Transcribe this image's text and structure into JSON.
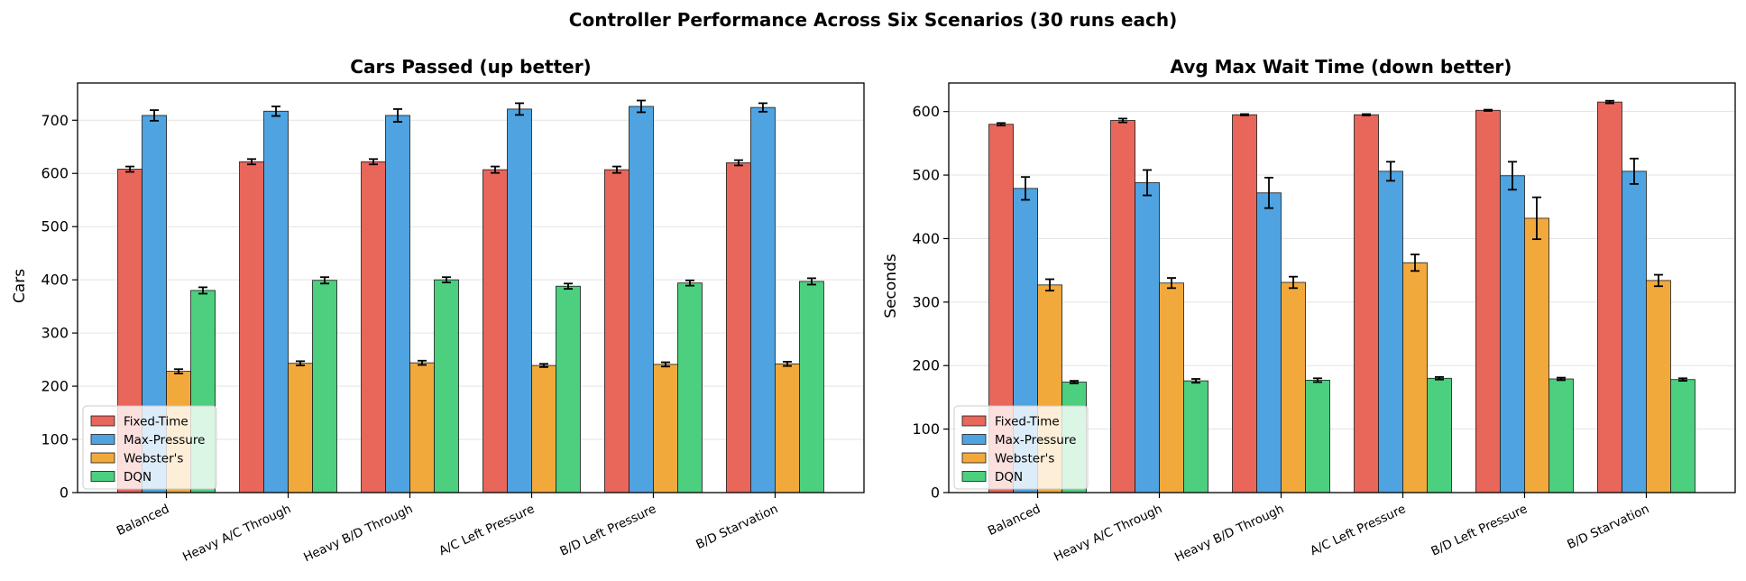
{
  "figure_title": "Controller Performance Across Six Scenarios  (30 runs each)",
  "chart_data": [
    {
      "type": "bar",
      "title": "Cars Passed (up better)",
      "xlabel": "",
      "ylabel": "Cars",
      "ylim": [
        0,
        770
      ],
      "yticks": [
        0,
        100,
        200,
        300,
        400,
        500,
        600,
        700
      ],
      "grid": "y",
      "legend_position": "lower-left",
      "categories": [
        "Balanced",
        "Heavy A/C Through",
        "Heavy B/D Through",
        "A/C Left Pressure",
        "B/D Left Pressure",
        "B/D Starvation"
      ],
      "series": [
        {
          "name": "Fixed-Time",
          "color": "#e8665a",
          "values": [
            608,
            622,
            622,
            607,
            607,
            620
          ],
          "errors": [
            5,
            5,
            5,
            6,
            6,
            5
          ]
        },
        {
          "name": "Max-Pressure",
          "color": "#4fa3e0",
          "values": [
            709,
            717,
            709,
            721,
            726,
            724
          ],
          "errors": [
            10,
            9,
            12,
            11,
            11,
            8
          ]
        },
        {
          "name": "Webster's",
          "color": "#f2a93b",
          "values": [
            228,
            243,
            244,
            239,
            241,
            242
          ],
          "errors": [
            4,
            4,
            4,
            3,
            4,
            4
          ]
        },
        {
          "name": "DQN",
          "color": "#4ccf7e",
          "values": [
            380,
            399,
            400,
            388,
            394,
            397
          ],
          "errors": [
            6,
            6,
            5,
            5,
            5,
            6
          ]
        }
      ]
    },
    {
      "type": "bar",
      "title": "Avg Max Wait Time (down better)",
      "xlabel": "",
      "ylabel": "Seconds",
      "ylim": [
        0,
        645
      ],
      "yticks": [
        0,
        100,
        200,
        300,
        400,
        500,
        600
      ],
      "grid": "y",
      "legend_position": "lower-left",
      "categories": [
        "Balanced",
        "Heavy A/C Through",
        "Heavy B/D Through",
        "A/C Left Pressure",
        "B/D Left Pressure",
        "B/D Starvation"
      ],
      "series": [
        {
          "name": "Fixed-Time",
          "color": "#e8665a",
          "values": [
            580,
            586,
            595,
            595,
            602,
            615
          ],
          "errors": [
            2,
            3,
            1,
            1,
            1,
            2
          ]
        },
        {
          "name": "Max-Pressure",
          "color": "#4fa3e0",
          "values": [
            479,
            488,
            472,
            506,
            499,
            506
          ],
          "errors": [
            18,
            20,
            24,
            15,
            22,
            20
          ]
        },
        {
          "name": "Webster's",
          "color": "#f2a93b",
          "values": [
            327,
            330,
            331,
            362,
            432,
            334
          ],
          "errors": [
            9,
            8,
            9,
            13,
            33,
            9
          ]
        },
        {
          "name": "DQN",
          "color": "#4ccf7e",
          "values": [
            174,
            176,
            177,
            180,
            179,
            178
          ],
          "errors": [
            2,
            3,
            3,
            2,
            2,
            2
          ]
        }
      ]
    }
  ]
}
